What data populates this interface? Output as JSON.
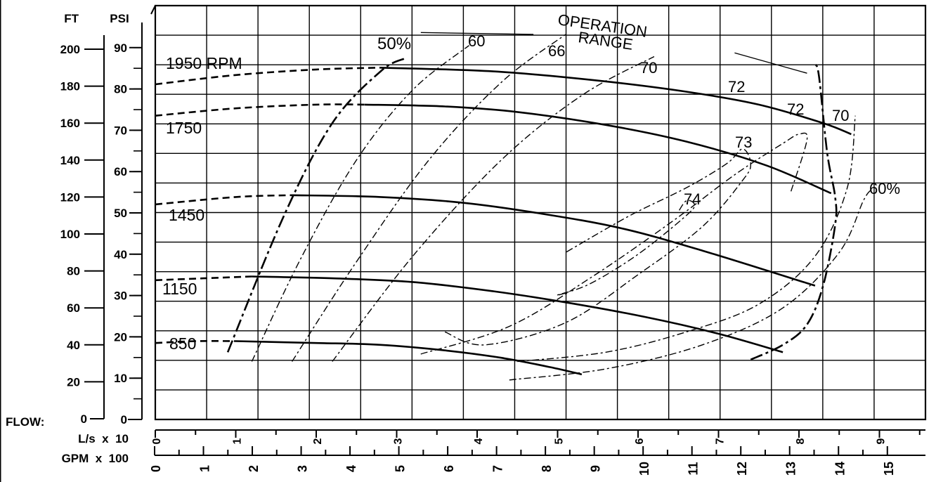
{
  "chart_data": {
    "type": "line",
    "title": "",
    "axes": {
      "ft": {
        "label": "FT",
        "ticks": [
          "0",
          "20",
          "40",
          "60",
          "80",
          "100",
          "120",
          "140",
          "160",
          "180",
          "200"
        ],
        "range": [
          0,
          200
        ]
      },
      "psi": {
        "label": "PSI",
        "ticks": [
          "0",
          "10",
          "20",
          "30",
          "40",
          "50",
          "60",
          "70",
          "80",
          "90"
        ],
        "range": [
          0,
          90
        ]
      },
      "flow_ls": {
        "label": "L/s  x  10",
        "ticks": [
          "0",
          "1",
          "2",
          "3",
          "4",
          "5",
          "6",
          "7",
          "8",
          "9"
        ],
        "range": [
          0,
          9.5
        ]
      },
      "flow_gpm": {
        "label": "GPM  x  100",
        "ticks": [
          "0",
          "1",
          "2",
          "3",
          "4",
          "5",
          "6",
          "7",
          "8",
          "9",
          "10",
          "11",
          "12",
          "13",
          "14",
          "15"
        ],
        "range": [
          0,
          15
        ]
      },
      "flow_prefix": "FLOW:"
    },
    "grid": true,
    "speed_curves": [
      {
        "name": "1950 RPM",
        "solid": [
          [
            2.8,
            190
          ],
          [
            4.2,
            188
          ],
          [
            5.5,
            183
          ],
          [
            6.6,
            177
          ],
          [
            7.5,
            170
          ],
          [
            8.3,
            160
          ],
          [
            8.65,
            154
          ]
        ],
        "dashed": [
          [
            0,
            181
          ],
          [
            1,
            186
          ],
          [
            2,
            189
          ],
          [
            2.8,
            190
          ]
        ]
      },
      {
        "name": "1750",
        "solid": [
          [
            2.6,
            170
          ],
          [
            3.6,
            169
          ],
          [
            4.5,
            166
          ],
          [
            5.6,
            159
          ],
          [
            6.6,
            150
          ],
          [
            7.6,
            137
          ],
          [
            8.4,
            122
          ]
        ],
        "dashed": [
          [
            0,
            164
          ],
          [
            1,
            168
          ],
          [
            2,
            170
          ],
          [
            2.6,
            170
          ]
        ]
      },
      {
        "name": "1450",
        "solid": [
          [
            1.7,
            121
          ],
          [
            2.8,
            120
          ],
          [
            3.8,
            117
          ],
          [
            4.8,
            111
          ],
          [
            5.8,
            103
          ],
          [
            6.8,
            91
          ],
          [
            8.2,
            72
          ]
        ],
        "dashed": [
          [
            0,
            116
          ],
          [
            1,
            120
          ],
          [
            1.7,
            121
          ]
        ]
      },
      {
        "name": "1150",
        "solid": [
          [
            1.2,
            77
          ],
          [
            2.2,
            76
          ],
          [
            3.2,
            74
          ],
          [
            4.2,
            69
          ],
          [
            5.1,
            63
          ],
          [
            6.1,
            55
          ],
          [
            7.0,
            46
          ],
          [
            7.8,
            36
          ]
        ],
        "dashed": [
          [
            0,
            75
          ],
          [
            0.6,
            76
          ],
          [
            1.2,
            77
          ]
        ]
      },
      {
        "name": "850",
        "solid": [
          [
            1.0,
            42
          ],
          [
            2.0,
            41
          ],
          [
            2.8,
            40
          ],
          [
            3.6,
            37
          ],
          [
            4.3,
            33
          ],
          [
            4.9,
            28
          ],
          [
            5.3,
            24
          ]
        ],
        "dashed": [
          [
            0,
            41
          ],
          [
            0.5,
            42
          ],
          [
            1.0,
            42
          ]
        ]
      }
    ],
    "efficiency_curves": [
      {
        "name": "50%",
        "points": [
          [
            0.9,
            36
          ],
          [
            1.6,
            110
          ],
          [
            2.2,
            160
          ],
          [
            2.8,
            188
          ],
          [
            3.1,
            195
          ]
        ]
      },
      {
        "name": "60",
        "points": [
          [
            1.2,
            31
          ],
          [
            1.8,
            86
          ],
          [
            2.5,
            140
          ],
          [
            3.2,
            178
          ],
          [
            3.9,
            202
          ]
        ]
      },
      {
        "name": "66",
        "points": [
          [
            1.7,
            31
          ],
          [
            2.5,
            85
          ],
          [
            3.4,
            140
          ],
          [
            4.3,
            182
          ],
          [
            5.1,
            208
          ]
        ]
      },
      {
        "name": "70",
        "points": [
          [
            2.2,
            31
          ],
          [
            3.2,
            88
          ],
          [
            4.3,
            140
          ],
          [
            5.3,
            175
          ],
          [
            6.2,
            196
          ]
        ]
      },
      {
        "name": "72",
        "points": [
          [
            3.3,
            35
          ],
          [
            4.4,
            50
          ],
          [
            5.4,
            76
          ],
          [
            6.4,
            106
          ],
          [
            7.2,
            132
          ],
          [
            7.8,
            149
          ],
          [
            8.0,
            154
          ],
          [
            8.1,
            151
          ],
          [
            7.9,
            123
          ]
        ]
      },
      {
        "name": "73",
        "points": [
          [
            3.6,
            47
          ],
          [
            4.1,
            40
          ],
          [
            5.1,
            52
          ],
          [
            6.0,
            78
          ],
          [
            6.8,
            104
          ],
          [
            7.3,
            129
          ],
          [
            7.4,
            138
          ],
          [
            7.3,
            146
          ],
          [
            7.1,
            138
          ],
          [
            6.6,
            125
          ],
          [
            5.9,
            110
          ],
          [
            5.1,
            90
          ]
        ]
      },
      {
        "name": "74",
        "points": [
          [
            5.1,
            68
          ],
          [
            5.0,
            67
          ],
          [
            5.4,
            73
          ],
          [
            6.0,
            89
          ],
          [
            6.6,
            110
          ],
          [
            6.7,
            116
          ],
          [
            6.6,
            118
          ],
          [
            6.5,
            112
          ]
        ]
      },
      {
        "name": "60%",
        "points": [
          [
            4.4,
            21
          ],
          [
            5.6,
            27
          ],
          [
            6.8,
            40
          ],
          [
            7.8,
            60
          ],
          [
            8.5,
            90
          ],
          [
            8.8,
            118
          ],
          [
            8.9,
            124
          ]
        ]
      },
      {
        "name": "70",
        "points": [
          [
            4.5,
            31
          ],
          [
            5.6,
            36
          ],
          [
            6.6,
            47
          ],
          [
            7.5,
            62
          ],
          [
            8.2,
            88
          ],
          [
            8.6,
            125
          ],
          [
            8.7,
            164
          ]
        ]
      }
    ],
    "operation_range": {
      "label_line1": "OPERATION",
      "label_line2": "RANGE",
      "boundary": [
        [
          7.4,
          32
        ],
        [
          7.8,
          40
        ],
        [
          8.1,
          51
        ],
        [
          8.3,
          72
        ],
        [
          8.45,
          105
        ],
        [
          8.45,
          120
        ],
        [
          8.35,
          144
        ],
        [
          8.25,
          185
        ],
        [
          8.2,
          192
        ]
      ],
      "left_boundary": [
        [
          0.9,
          36
        ],
        [
          1.6,
          110
        ],
        [
          2.2,
          160
        ],
        [
          2.8,
          188
        ],
        [
          3.1,
          195
        ]
      ],
      "top_marker": [
        [
          3.3,
          209
        ],
        [
          4.7,
          208
        ]
      ],
      "top_right_marker": [
        [
          7.2,
          198
        ],
        [
          8.1,
          187
        ]
      ]
    }
  }
}
